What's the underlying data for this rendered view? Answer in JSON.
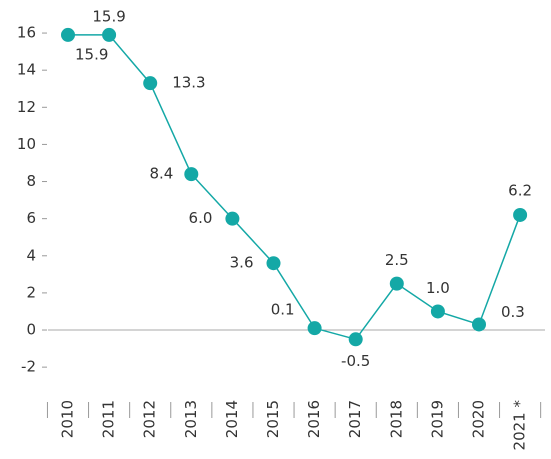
{
  "chart_data": {
    "type": "line",
    "categories": [
      "2010",
      "2011",
      "2012",
      "2013",
      "2014",
      "2015",
      "2016",
      "2017",
      "2018",
      "2019",
      "2020",
      "2021 *"
    ],
    "series": [
      {
        "color": "#14a8a6",
        "values": [
          15.9,
          15.9,
          13.3,
          8.4,
          6.0,
          3.6,
          0.1,
          -0.5,
          2.5,
          1.0,
          0.3,
          6.2
        ],
        "value_labels": [
          "15.9",
          "15.9",
          "13.3",
          "8.4",
          "6.0",
          "3.6",
          "0.1",
          "-0.5",
          "2.5",
          "1.0",
          "0.3",
          "6.2"
        ]
      }
    ],
    "ylim": [
      -3,
      17
    ],
    "yticks": [
      -2,
      0,
      2,
      4,
      6,
      8,
      10,
      12,
      14,
      16
    ]
  }
}
